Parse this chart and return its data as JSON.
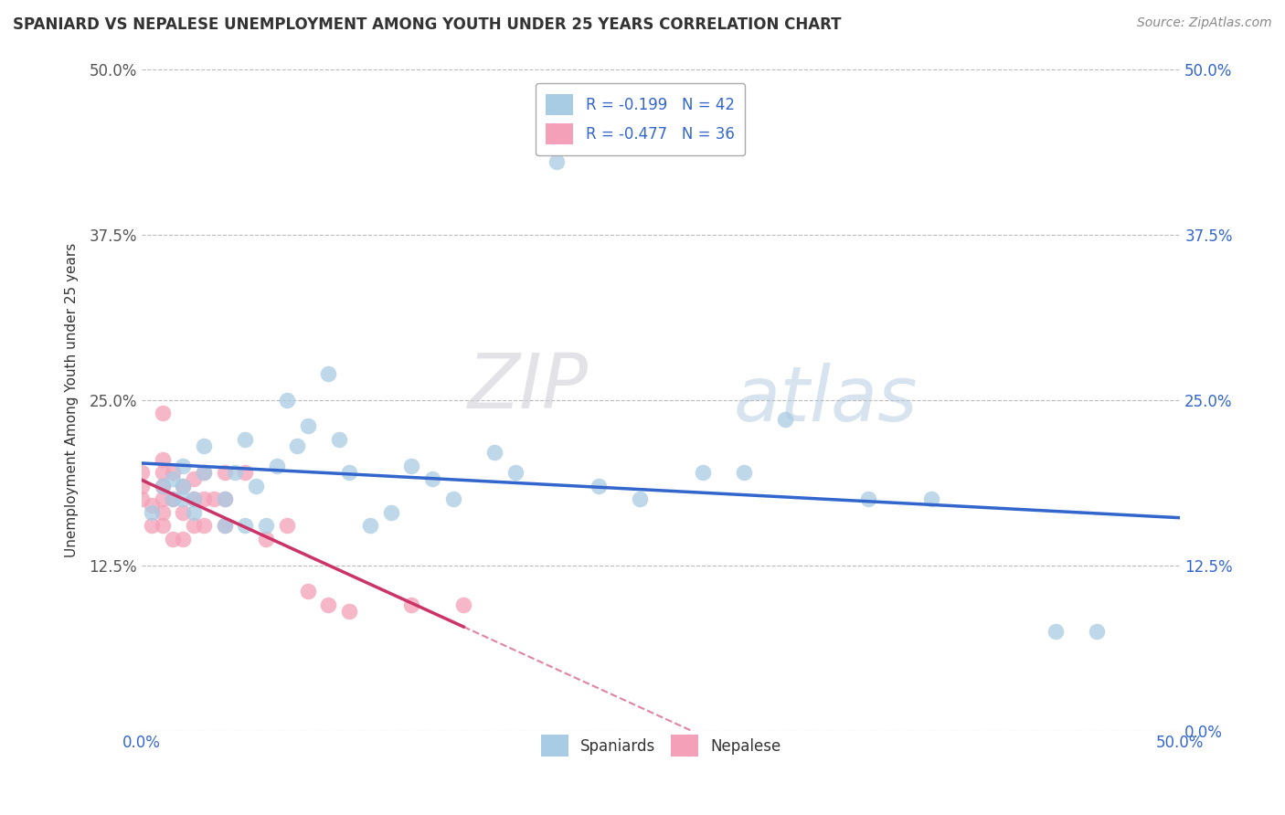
{
  "title": "SPANIARD VS NEPALESE UNEMPLOYMENT AMONG YOUTH UNDER 25 YEARS CORRELATION CHART",
  "source_text": "Source: ZipAtlas.com",
  "ylabel": "Unemployment Among Youth under 25 years",
  "xlim": [
    0.0,
    0.5
  ],
  "ylim": [
    0.0,
    0.5
  ],
  "xtick_vals": [
    0.0,
    0.5
  ],
  "xtick_labels": [
    "0.0%",
    "50.0%"
  ],
  "ytick_vals": [
    0.0,
    0.125,
    0.25,
    0.375,
    0.5
  ],
  "ytick_labels_left": [
    "",
    "12.5%",
    "25.0%",
    "37.5%",
    "50.0%"
  ],
  "ytick_labels_right": [
    "0.0%",
    "12.5%",
    "25.0%",
    "37.5%",
    "50.0%"
  ],
  "legend_line1": "R = -0.199   N = 42",
  "legend_line2": "R = -0.477   N = 36",
  "blue_scatter_color": "#a8cce4",
  "pink_scatter_color": "#f4a0b8",
  "blue_line_color": "#3366cc",
  "pink_line_color": "#cc3366",
  "watermark_zip": "ZIP",
  "watermark_atlas": "atlas",
  "spaniard_x": [
    0.005,
    0.01,
    0.015,
    0.015,
    0.02,
    0.02,
    0.02,
    0.025,
    0.025,
    0.03,
    0.03,
    0.04,
    0.04,
    0.045,
    0.05,
    0.05,
    0.055,
    0.06,
    0.065,
    0.07,
    0.075,
    0.08,
    0.09,
    0.095,
    0.1,
    0.11,
    0.12,
    0.13,
    0.14,
    0.15,
    0.17,
    0.18,
    0.2,
    0.22,
    0.24,
    0.27,
    0.29,
    0.31,
    0.35,
    0.38,
    0.44,
    0.46
  ],
  "spaniard_y": [
    0.165,
    0.185,
    0.175,
    0.19,
    0.175,
    0.185,
    0.2,
    0.165,
    0.175,
    0.195,
    0.215,
    0.155,
    0.175,
    0.195,
    0.155,
    0.22,
    0.185,
    0.155,
    0.2,
    0.25,
    0.215,
    0.23,
    0.27,
    0.22,
    0.195,
    0.155,
    0.165,
    0.2,
    0.19,
    0.175,
    0.21,
    0.195,
    0.43,
    0.185,
    0.175,
    0.195,
    0.195,
    0.235,
    0.175,
    0.175,
    0.075,
    0.075
  ],
  "nepalese_x": [
    0.0,
    0.0,
    0.0,
    0.005,
    0.005,
    0.01,
    0.01,
    0.01,
    0.01,
    0.01,
    0.01,
    0.01,
    0.015,
    0.015,
    0.015,
    0.02,
    0.02,
    0.02,
    0.025,
    0.025,
    0.025,
    0.03,
    0.03,
    0.03,
    0.035,
    0.04,
    0.04,
    0.04,
    0.05,
    0.06,
    0.07,
    0.08,
    0.09,
    0.1,
    0.13,
    0.155
  ],
  "nepalese_y": [
    0.175,
    0.185,
    0.195,
    0.155,
    0.17,
    0.155,
    0.165,
    0.175,
    0.185,
    0.195,
    0.205,
    0.24,
    0.145,
    0.175,
    0.195,
    0.145,
    0.165,
    0.185,
    0.155,
    0.175,
    0.19,
    0.155,
    0.175,
    0.195,
    0.175,
    0.155,
    0.175,
    0.195,
    0.195,
    0.145,
    0.155,
    0.105,
    0.095,
    0.09,
    0.095,
    0.095
  ],
  "background_color": "#ffffff",
  "grid_color": "#bbbbbb",
  "grid_linestyle": "--"
}
